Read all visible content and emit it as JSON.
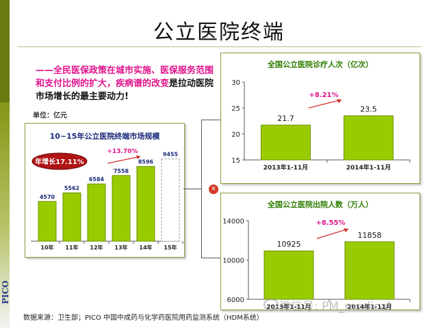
{
  "slide": {
    "title": "公立医院终端",
    "intro_pink": "——全民医保政策在城市实施、医保服务范围和支付比例的扩大，疾病谱的改变",
    "intro_black": "是拉动医院市场增长的最主要动力!",
    "unit": "单位：亿元",
    "source": "数据来源：卫生部；PICO 中国中成药与化学药医院用药监测系统（HDM系统）",
    "watermark": "微信号: PM_medical",
    "logo": "PICO"
  },
  "colors": {
    "bar": "#99cc00",
    "bar_stroke": "#6f8f00",
    "growth_red": "#e0138c",
    "badge_red": "#b01414",
    "accent_olive": "#697a10"
  },
  "chart_data": [
    {
      "type": "bar",
      "title": "10~15年公立医院终端市场规模",
      "categories": [
        "10年",
        "11年",
        "12年",
        "13年",
        "14年",
        "15年"
      ],
      "values": [
        4570,
        5562,
        6584,
        7558,
        8596,
        9455
      ],
      "forecast_index": 5,
      "badge_label": "年增长17.11%",
      "growth_annotation": "+13.70%",
      "ylim": [
        0,
        11000
      ],
      "xlabel": "",
      "ylabel": ""
    },
    {
      "type": "bar",
      "title": "全国公立医院诊疗人次（亿次）",
      "categories": [
        "2013年1-11月",
        "2014年1-11月"
      ],
      "values": [
        21.7,
        23.5
      ],
      "ylim": [
        15,
        30
      ],
      "yticks": [
        15,
        20,
        25,
        30
      ],
      "growth_annotation": "+8.21%"
    },
    {
      "type": "bar",
      "title": "全国公立医院出院人数（万人）",
      "categories": [
        "2013年1-11月",
        "2014年1-11月"
      ],
      "values": [
        10925,
        11858
      ],
      "ylim": [
        6000,
        14000
      ],
      "yticks": [
        6000,
        10000,
        14000
      ],
      "growth_annotation": "+8.55%"
    }
  ]
}
